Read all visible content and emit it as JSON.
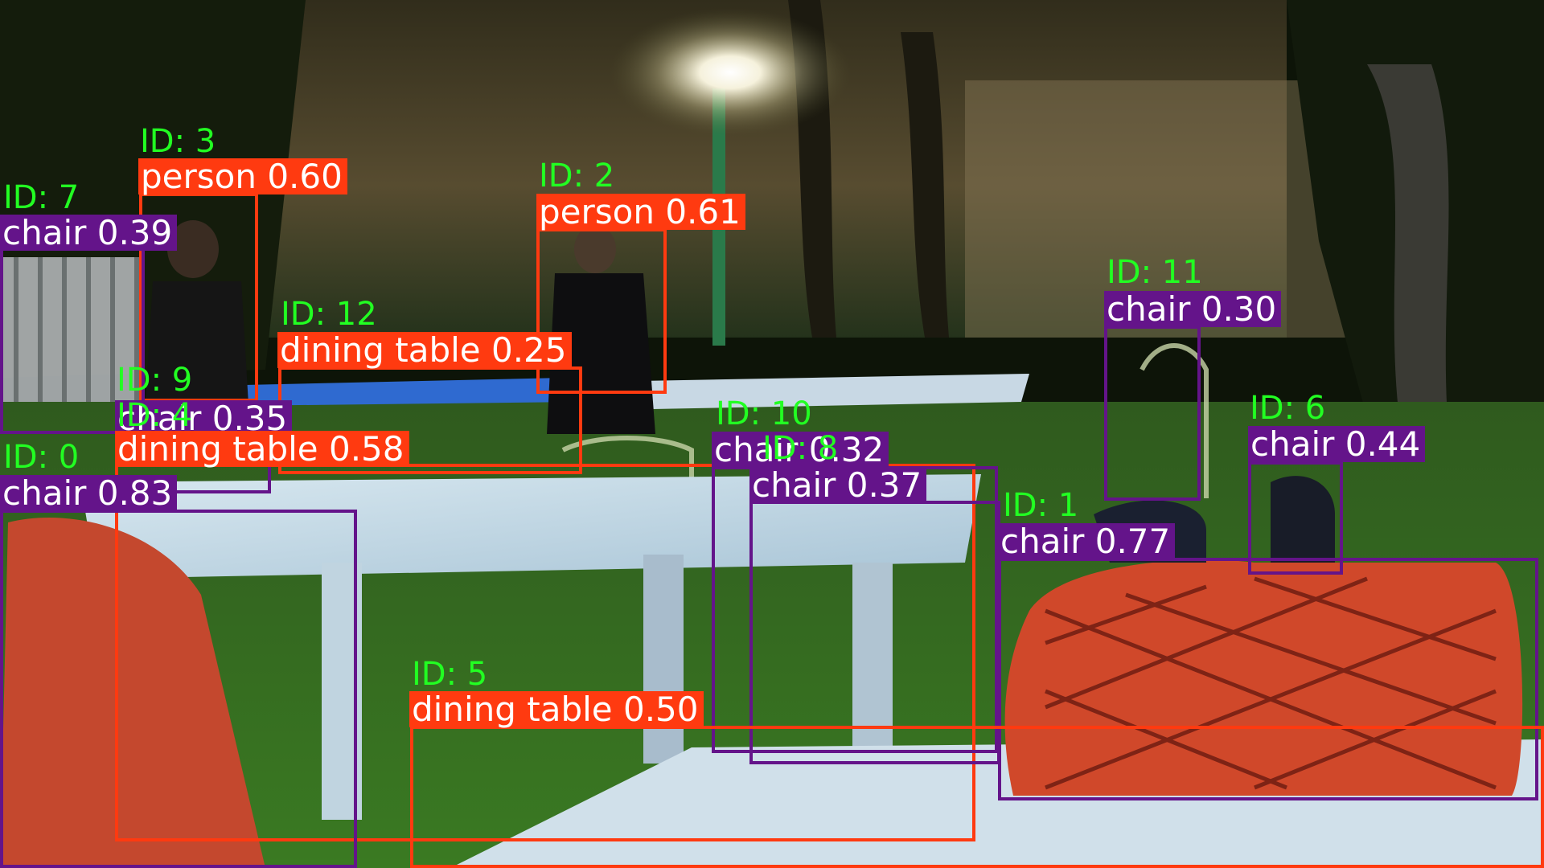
{
  "colors": {
    "person": "#ff3a10",
    "dining table": "#ff3a10",
    "chair": "#64148a",
    "id_text": "#22ff22"
  },
  "detections": [
    {
      "track_id": "ID: 3",
      "label": "person 0.60"
    },
    {
      "track_id": "ID: 7",
      "label": "chair 0.39"
    },
    {
      "track_id": "ID: 2",
      "label": "person 0.61"
    },
    {
      "track_id": "ID: 12",
      "label": "dining table 0.25"
    },
    {
      "track_id": "ID: 11",
      "label": "chair 0.30"
    },
    {
      "track_id": "ID: 9",
      "label": "chair 0.35"
    },
    {
      "track_id": "ID: 4",
      "label": "dining table 0.58"
    },
    {
      "track_id": "ID: 0",
      "label": "chair 0.83"
    },
    {
      "track_id": "ID: 10",
      "label": "chair 0.32"
    },
    {
      "track_id": "ID: 8",
      "label": "chair 0.37"
    },
    {
      "track_id": "ID: 6",
      "label": "chair 0.44"
    },
    {
      "track_id": "ID: 1",
      "label": "chair 0.77"
    },
    {
      "track_id": "ID: 5",
      "label": "dining table 0.50"
    }
  ]
}
